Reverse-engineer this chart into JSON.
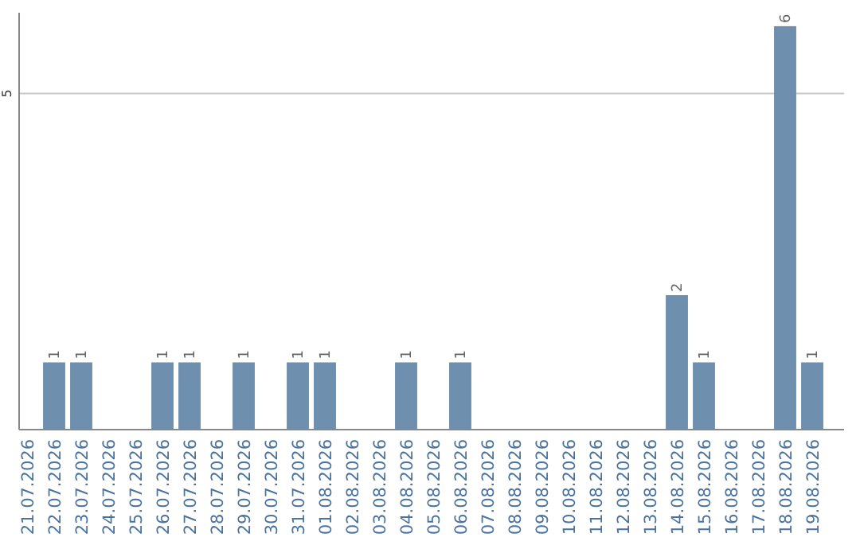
{
  "chart_data": {
    "type": "bar",
    "categories": [
      "21.07.2026",
      "22.07.2026",
      "23.07.2026",
      "24.07.2026",
      "25.07.2026",
      "26.07.2026",
      "27.07.2026",
      "28.07.2026",
      "29.07.2026",
      "30.07.2026",
      "31.07.2026",
      "01.08.2026",
      "02.08.2026",
      "03.08.2026",
      "04.08.2026",
      "05.08.2026",
      "06.08.2026",
      "07.08.2026",
      "08.08.2026",
      "09.08.2026",
      "10.08.2026",
      "11.08.2026",
      "12.08.2026",
      "13.08.2026",
      "14.08.2026",
      "15.08.2026",
      "16.08.2026",
      "17.08.2026",
      "18.08.2026",
      "19.08.2026"
    ],
    "values": [
      0,
      1,
      1,
      0,
      0,
      1,
      1,
      0,
      1,
      0,
      1,
      1,
      0,
      0,
      1,
      0,
      1,
      0,
      0,
      0,
      0,
      0,
      0,
      0,
      2,
      1,
      0,
      0,
      6,
      1
    ],
    "value_labels": [
      null,
      "1",
      "1",
      null,
      null,
      "1",
      "1",
      null,
      "1",
      null,
      "1",
      "1",
      null,
      null,
      "1",
      null,
      "1",
      null,
      null,
      null,
      null,
      null,
      null,
      null,
      "2",
      "1",
      null,
      null,
      "6",
      "1"
    ],
    "color": "#6f8faf",
    "ylim": [
      0,
      6.2
    ],
    "yticks": [
      5
    ],
    "grid": "y"
  }
}
